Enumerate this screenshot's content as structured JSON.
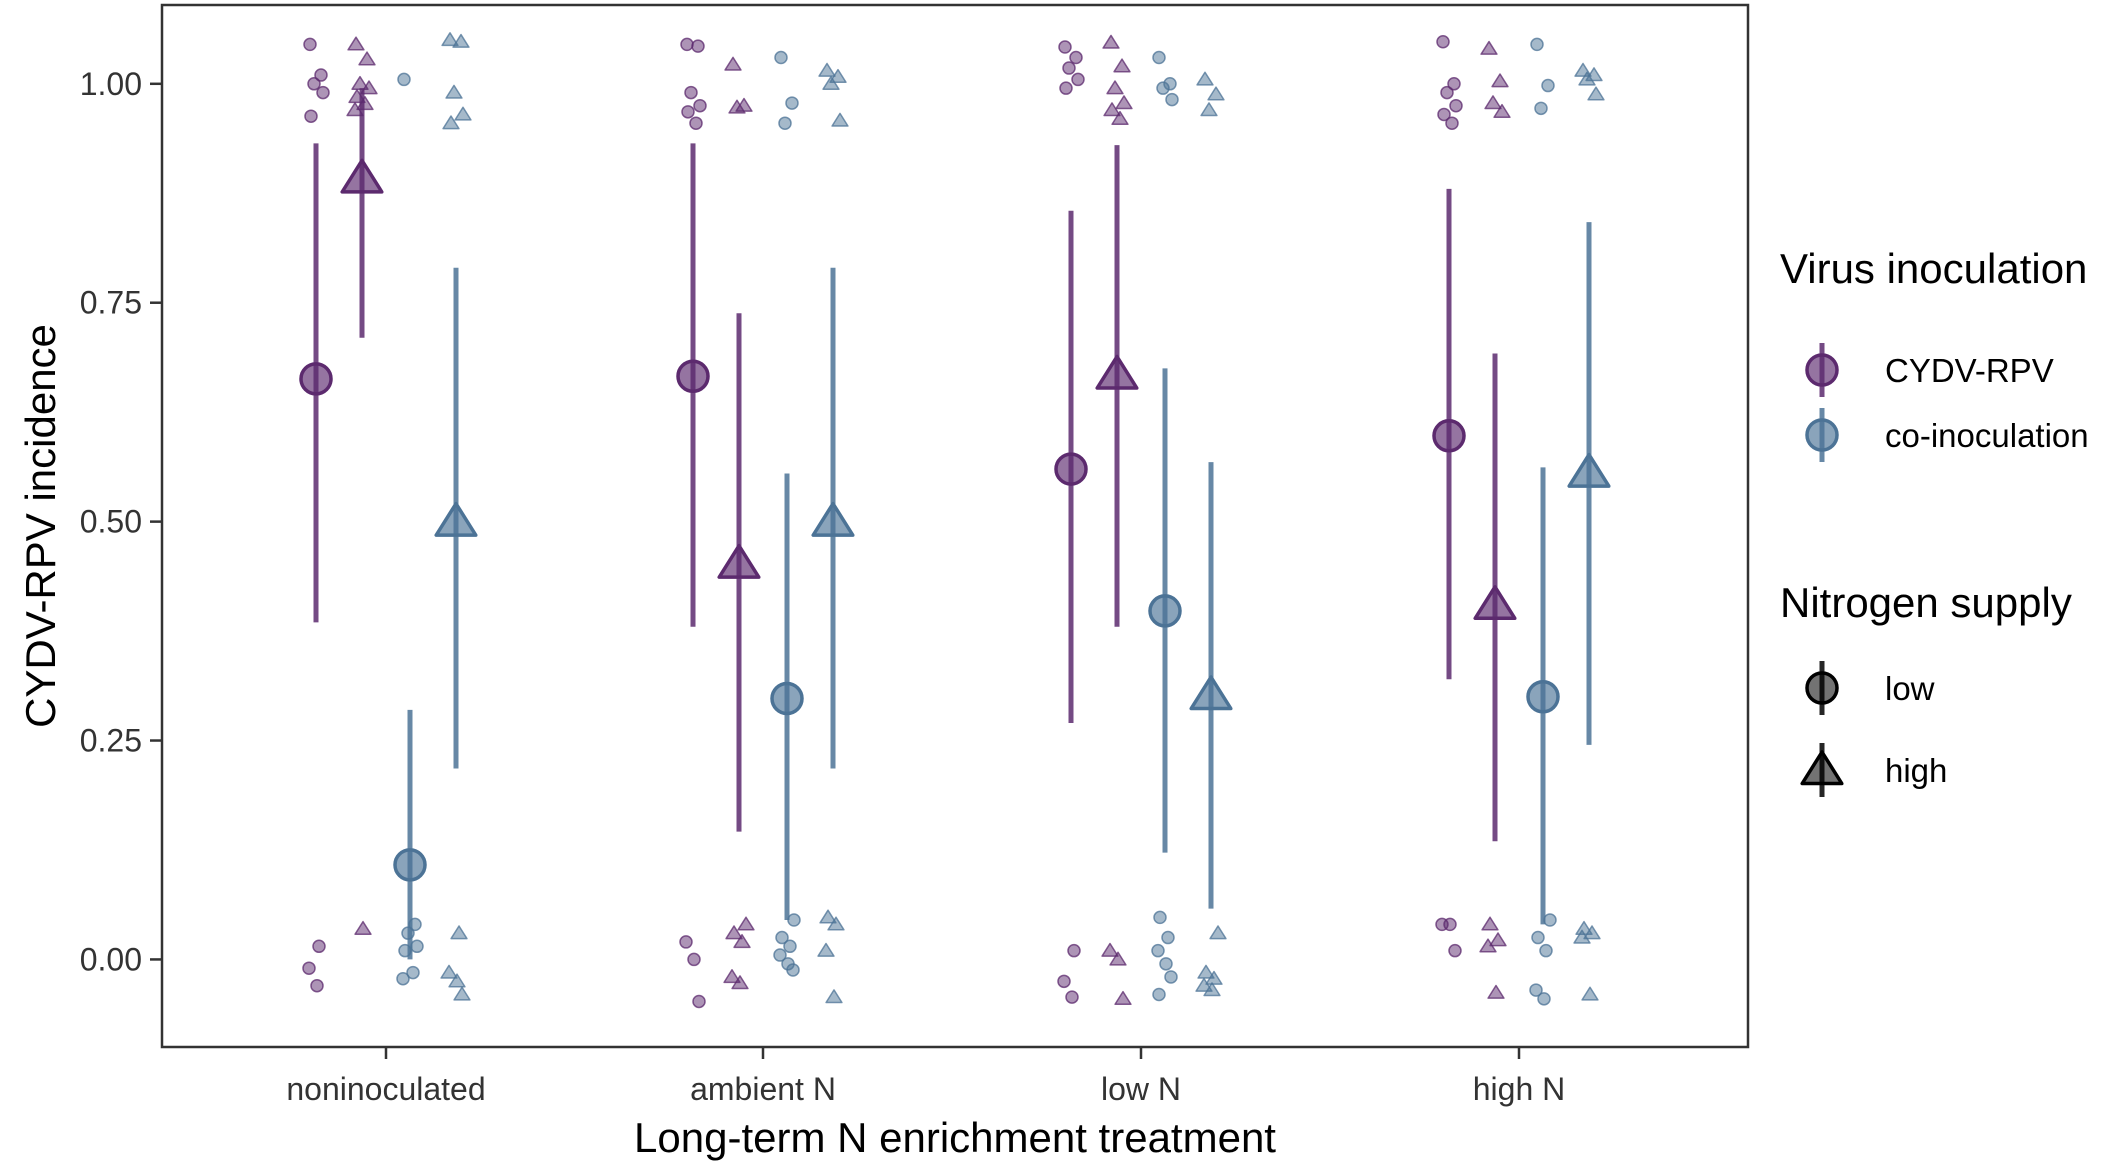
{
  "chart_data": {
    "type": "scatter",
    "xlabel": "Long-term N enrichment treatment",
    "ylabel": "CYDV-RPV incidence",
    "ylim": [
      -0.1,
      1.09
    ],
    "yticks": [
      0.0,
      0.25,
      0.5,
      0.75,
      1.0
    ],
    "ytick_labels": [
      "0.00",
      "0.25",
      "0.50",
      "0.75",
      "1.00"
    ],
    "categories": [
      "noninoculated",
      "ambient N",
      "low N",
      "high N"
    ],
    "grid": false,
    "legend_position": "right",
    "colors": {
      "CYDV-RPV": "#5c2a6e",
      "co-inoculation": "#4c7396"
    },
    "legends": [
      {
        "title": "Virus inoculation",
        "key": "virus",
        "entries": [
          "CYDV-RPV",
          "co-inoculation"
        ]
      },
      {
        "title": "Nitrogen supply",
        "key": "nitrogen",
        "entries": [
          "low",
          "high"
        ]
      }
    ],
    "series": [
      {
        "virus": "CYDV-RPV",
        "nitrogen": "low",
        "means": [
          0.663,
          0.666,
          0.56,
          0.598
        ],
        "lower": [
          0.385,
          0.38,
          0.27,
          0.32
        ],
        "upper": [
          0.932,
          0.932,
          0.855,
          0.88
        ],
        "raw": [
          {
            "top": [
              1.045,
              1.01,
              1.0,
              0.99,
              0.963
            ],
            "bottom": [
              0.015,
              -0.01,
              -0.03
            ]
          },
          {
            "top": [
              1.045,
              1.043,
              0.99,
              0.975,
              0.968,
              0.955
            ],
            "bottom": [
              0.02,
              0.0,
              -0.048
            ]
          },
          {
            "top": [
              1.042,
              1.03,
              1.018,
              1.005,
              0.995
            ],
            "bottom": [
              0.01,
              -0.025,
              -0.043
            ]
          },
          {
            "top": [
              1.048,
              1.0,
              0.99,
              0.975,
              0.965,
              0.955
            ],
            "bottom": [
              0.04,
              0.04,
              0.01
            ]
          }
        ]
      },
      {
        "virus": "CYDV-RPV",
        "nitrogen": "high",
        "means": [
          0.892,
          0.452,
          0.668,
          0.405
        ],
        "lower": [
          0.71,
          0.146,
          0.38,
          0.135
        ],
        "upper": [
          0.995,
          0.738,
          0.93,
          0.692
        ],
        "raw": [
          {
            "top": [
              1.045,
              1.028,
              1.0,
              0.995,
              0.985,
              0.977,
              0.97
            ],
            "bottom": [
              0.035
            ]
          },
          {
            "top": [
              1.022,
              0.975,
              0.973
            ],
            "bottom": [
              0.04,
              0.03,
              0.02,
              -0.02,
              -0.027
            ]
          },
          {
            "top": [
              1.047,
              1.02,
              0.995,
              0.978,
              0.97,
              0.96
            ],
            "bottom": [
              0.01,
              0.0,
              -0.045
            ]
          },
          {
            "top": [
              1.04,
              1.003,
              0.978,
              0.968
            ],
            "bottom": [
              0.04,
              0.022,
              0.015,
              -0.038
            ]
          }
        ]
      },
      {
        "virus": "co-inoculation",
        "nitrogen": "low",
        "means": [
          0.108,
          0.298,
          0.398,
          0.3
        ],
        "lower": [
          0.0,
          0.045,
          0.122,
          0.04
        ],
        "upper": [
          0.285,
          0.555,
          0.675,
          0.562
        ],
        "raw": [
          {
            "top": [
              1.005
            ],
            "bottom": [
              0.04,
              0.03,
              0.015,
              0.01,
              -0.015,
              -0.022
            ]
          },
          {
            "top": [
              1.03,
              0.978,
              0.955
            ],
            "bottom": [
              0.045,
              0.025,
              0.015,
              0.005,
              -0.005,
              -0.012
            ]
          },
          {
            "top": [
              1.03,
              1.0,
              0.995,
              0.982
            ],
            "bottom": [
              0.048,
              0.025,
              0.01,
              -0.005,
              -0.02,
              -0.04
            ]
          },
          {
            "top": [
              1.045,
              0.998,
              0.972
            ],
            "bottom": [
              0.045,
              0.025,
              0.01,
              -0.035,
              -0.045
            ]
          }
        ]
      },
      {
        "virus": "co-inoculation",
        "nitrogen": "high",
        "means": [
          0.5,
          0.5,
          0.302,
          0.556
        ],
        "lower": [
          0.218,
          0.218,
          0.058,
          0.245
        ],
        "upper": [
          0.79,
          0.79,
          0.568,
          0.842
        ],
        "raw": [
          {
            "top": [
              1.05,
              1.048,
              0.99,
              0.965,
              0.955
            ],
            "bottom": [
              0.03,
              -0.015,
              -0.025,
              -0.04
            ]
          },
          {
            "top": [
              1.015,
              1.008,
              1.0,
              0.958
            ],
            "bottom": [
              0.048,
              0.04,
              0.01,
              -0.043
            ]
          },
          {
            "top": [
              1.005,
              0.988,
              0.97
            ],
            "bottom": [
              0.03,
              -0.015,
              -0.022,
              -0.03,
              -0.035
            ]
          },
          {
            "top": [
              1.015,
              1.01,
              1.005,
              0.988
            ],
            "bottom": [
              0.035,
              0.03,
              0.025,
              -0.04
            ]
          }
        ]
      }
    ]
  }
}
